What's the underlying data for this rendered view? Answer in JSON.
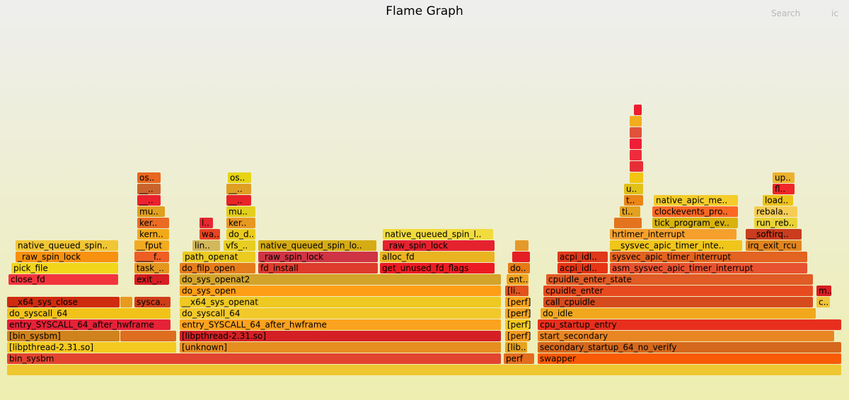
{
  "header": {
    "title": "Flame Graph",
    "search_label": "Search",
    "ic_label": "ic"
  },
  "chart_data": {
    "type": "flamegraph",
    "title": "Flame Graph",
    "total_samples": 1180,
    "frames": [
      {
        "name": "",
        "s": 0,
        "w": 1180,
        "d": 0,
        "c": "#eec731"
      },
      {
        "name": "bin_sysbm",
        "s": 0,
        "w": 699,
        "d": 1,
        "c": "#e24430"
      },
      {
        "name": "perf",
        "s": 702,
        "w": 44,
        "d": 1,
        "c": "#e36c1d"
      },
      {
        "name": "swapper",
        "s": 750,
        "w": 430,
        "d": 1,
        "c": "#f95a06"
      },
      {
        "name": "[libpthread-2.31.so]",
        "s": 0,
        "w": 240,
        "d": 2,
        "c": "#f4ca21"
      },
      {
        "name": "[unknown]",
        "s": 244,
        "w": 455,
        "d": 2,
        "c": "#e68e20"
      },
      {
        "name": "[lib..",
        "s": 704,
        "w": 32,
        "d": 2,
        "c": "#e7a21d"
      },
      {
        "name": "secondary_startup_64_no_verify",
        "s": 750,
        "w": 430,
        "d": 2,
        "c": "#d5681c"
      },
      {
        "name": "[bin_sysbm]",
        "s": 0,
        "w": 160,
        "d": 3,
        "c": "#d0821c"
      },
      {
        "name": "",
        "s": 160,
        "w": 80,
        "d": 3,
        "c": "#de6d20"
      },
      {
        "name": "[libpthread-2.31.so]",
        "s": 244,
        "w": 455,
        "d": 3,
        "c": "#d42024"
      },
      {
        "name": "[perf]",
        "s": 704,
        "w": 36,
        "d": 3,
        "c": "#f39a1d"
      },
      {
        "name": "start_secondary",
        "s": 750,
        "w": 420,
        "d": 3,
        "c": "#e98624"
      },
      {
        "name": "entry_SYSCALL_64_after_hwframe",
        "s": 0,
        "w": 232,
        "d": 4,
        "c": "#e62238"
      },
      {
        "name": "entry_SYSCALL_64_after_hwframe",
        "s": 244,
        "w": 455,
        "d": 4,
        "c": "#fba21e"
      },
      {
        "name": "[perf]",
        "s": 704,
        "w": 36,
        "d": 4,
        "c": "#f2c91f"
      },
      {
        "name": "cpu_startup_entry",
        "s": 750,
        "w": 430,
        "d": 4,
        "c": "#e82f1e"
      },
      {
        "name": "do_syscall_64",
        "s": 0,
        "w": 232,
        "d": 5,
        "c": "#f1c31a"
      },
      {
        "name": "do_syscall_64",
        "s": 244,
        "w": 455,
        "d": 5,
        "c": "#f2c92a"
      },
      {
        "name": "[perf]",
        "s": 704,
        "w": 36,
        "d": 5,
        "c": "#f1a31f"
      },
      {
        "name": "do_idle",
        "s": 754,
        "w": 390,
        "d": 5,
        "c": "#f1a81d"
      },
      {
        "name": "__x64_sys_close",
        "s": 0,
        "w": 160,
        "d": 6,
        "c": "#cf2b0e"
      },
      {
        "name": "",
        "s": 160,
        "w": 18,
        "d": 6,
        "c": "#e89a1f"
      },
      {
        "name": "sysca..",
        "s": 180,
        "w": 52,
        "d": 6,
        "c": "#cf3d18"
      },
      {
        "name": "__x64_sys_openat",
        "s": 244,
        "w": 455,
        "d": 6,
        "c": "#efc922"
      },
      {
        "name": "[perf]",
        "s": 704,
        "w": 36,
        "d": 6,
        "c": "#fba319"
      },
      {
        "name": "call_cpuidle",
        "s": 758,
        "w": 382,
        "d": 6,
        "c": "#d54b1d"
      },
      {
        "name": "c..",
        "s": 1144,
        "w": 20,
        "d": 6,
        "c": "#f1c53a"
      },
      {
        "name": "do_sys_open",
        "s": 244,
        "w": 455,
        "d": 7,
        "c": "#fe9e17"
      },
      {
        "name": "[li..",
        "s": 704,
        "w": 34,
        "d": 7,
        "c": "#e3521c"
      },
      {
        "name": "cpuidle_enter",
        "s": 758,
        "w": 382,
        "d": 7,
        "c": "#e84a1f"
      },
      {
        "name": "m..",
        "s": 1144,
        "w": 22,
        "d": 7,
        "c": "#d91d21"
      },
      {
        "name": "close_fd",
        "s": 2,
        "w": 156,
        "d": 8,
        "c": "#f2353d"
      },
      {
        "name": "exit_..",
        "s": 180,
        "w": 50,
        "d": 8,
        "c": "#d71e22"
      },
      {
        "name": "do_sys_openat2",
        "s": 244,
        "w": 455,
        "d": 8,
        "c": "#d3a32a"
      },
      {
        "name": "ent..",
        "s": 706,
        "w": 32,
        "d": 8,
        "c": "#efa41f"
      },
      {
        "name": "cpuidle_enter_state",
        "s": 762,
        "w": 378,
        "d": 8,
        "c": "#e05b25"
      },
      {
        "name": "pick_file",
        "s": 6,
        "w": 152,
        "d": 9,
        "c": "#f2d61b"
      },
      {
        "name": "task_..",
        "s": 180,
        "w": 50,
        "d": 9,
        "c": "#e4961f"
      },
      {
        "name": "do_filp_open",
        "s": 244,
        "w": 108,
        "d": 9,
        "c": "#e57c1c"
      },
      {
        "name": "fd_install",
        "s": 355,
        "w": 170,
        "d": 9,
        "c": "#de3b2d"
      },
      {
        "name": "get_unused_fd_flags",
        "s": 527,
        "w": 163,
        "d": 9,
        "c": "#ec1b23"
      },
      {
        "name": "do..",
        "s": 708,
        "w": 32,
        "d": 9,
        "c": "#e47a16"
      },
      {
        "name": "acpi_idl..",
        "s": 778,
        "w": 72,
        "d": 9,
        "c": "#e63414"
      },
      {
        "name": "asm_sysvec_apic_timer_interrupt",
        "s": 852,
        "w": 280,
        "d": 9,
        "c": "#e85230"
      },
      {
        "name": "_raw_spin_lock",
        "s": 12,
        "w": 146,
        "d": 10,
        "c": "#f7910f"
      },
      {
        "name": "____f..",
        "s": 180,
        "w": 50,
        "d": 10,
        "c": "#ee5e24"
      },
      {
        "name": "path_openat",
        "s": 248,
        "w": 104,
        "d": 10,
        "c": "#ebcb1f"
      },
      {
        "name": "_raw_spin_lock",
        "s": 355,
        "w": 170,
        "d": 10,
        "c": "#cf3444"
      },
      {
        "name": "alloc_fd",
        "s": 527,
        "w": 163,
        "d": 10,
        "c": "#e9b420"
      },
      {
        "name": "",
        "s": 714,
        "w": 26,
        "d": 10,
        "c": "#e51e25"
      },
      {
        "name": "acpi_idl..",
        "s": 778,
        "w": 72,
        "d": 10,
        "c": "#e0381b"
      },
      {
        "name": "sysvec_apic_timer_interrupt",
        "s": 852,
        "w": 280,
        "d": 10,
        "c": "#e36320"
      },
      {
        "name": "native_queued_spin..",
        "s": 12,
        "w": 146,
        "d": 11,
        "c": "#f1c635"
      },
      {
        "name": "__fput",
        "s": 180,
        "w": 50,
        "d": 11,
        "c": "#f2ab1f"
      },
      {
        "name": "lin..",
        "s": 262,
        "w": 40,
        "d": 11,
        "c": "#d3b75b"
      },
      {
        "name": "vfs_..",
        "s": 306,
        "w": 46,
        "d": 11,
        "c": "#e8ce22"
      },
      {
        "name": "native_queued_spin_lo..",
        "s": 355,
        "w": 168,
        "d": 11,
        "c": "#d6ac14"
      },
      {
        "name": "_raw_spin_lock",
        "s": 531,
        "w": 159,
        "d": 11,
        "c": "#e5232f"
      },
      {
        "name": "",
        "s": 718,
        "w": 20,
        "d": 11,
        "c": "#e5992a"
      },
      {
        "name": "__sysvec_apic_timer_inte..",
        "s": 852,
        "w": 188,
        "d": 11,
        "c": "#f1c61b"
      },
      {
        "name": "irq_exit_rcu",
        "s": 1044,
        "w": 80,
        "d": 11,
        "c": "#e3851e"
      },
      {
        "name": "kern..",
        "s": 184,
        "w": 46,
        "d": 12,
        "c": "#f2a919"
      },
      {
        "name": "wa..",
        "s": 272,
        "w": 30,
        "d": 12,
        "c": "#e74322"
      },
      {
        "name": "do_d..",
        "s": 310,
        "w": 42,
        "d": 12,
        "c": "#eacb1b"
      },
      {
        "name": "native_queued_spin_l..",
        "s": 531,
        "w": 157,
        "d": 12,
        "c": "#f1db3e"
      },
      {
        "name": "hrtimer_interrupt",
        "s": 852,
        "w": 180,
        "d": 12,
        "c": "#f5a02d"
      },
      {
        "name": "__softirq..",
        "s": 1044,
        "w": 80,
        "d": 12,
        "c": "#c93c1d"
      },
      {
        "name": "ker..",
        "s": 184,
        "w": 46,
        "d": 13,
        "c": "#ea6b21"
      },
      {
        "name": "l..",
        "s": 272,
        "w": 20,
        "d": 13,
        "c": "#e52832"
      },
      {
        "name": "ker..",
        "s": 310,
        "w": 42,
        "d": 13,
        "c": "#e79822"
      },
      {
        "name": "",
        "s": 858,
        "w": 40,
        "d": 13,
        "c": "#e3741d"
      },
      {
        "name": "tick_program_ev..",
        "s": 912,
        "w": 122,
        "d": 13,
        "c": "#d8b30f"
      },
      {
        "name": "run_reb..",
        "s": 1056,
        "w": 62,
        "d": 13,
        "c": "#e9d236"
      },
      {
        "name": "mu..",
        "s": 184,
        "w": 40,
        "d": 14,
        "c": "#e0a01f"
      },
      {
        "name": "mu..",
        "s": 310,
        "w": 42,
        "d": 14,
        "c": "#e3cf1b"
      },
      {
        "name": "ti..",
        "s": 866,
        "w": 30,
        "d": 14,
        "c": "#e2a11f"
      },
      {
        "name": "clockevents_pro..",
        "s": 912,
        "w": 122,
        "d": 14,
        "c": "#fc6824"
      },
      {
        "name": "rebala..",
        "s": 1056,
        "w": 62,
        "d": 14,
        "c": "#f5cd54"
      },
      {
        "name": "__..",
        "s": 184,
        "w": 34,
        "d": 15,
        "c": "#ec212e"
      },
      {
        "name": "__..",
        "s": 310,
        "w": 36,
        "d": 15,
        "c": "#e82428"
      },
      {
        "name": "t..",
        "s": 872,
        "w": 28,
        "d": 15,
        "c": "#ea8516"
      },
      {
        "name": "native_apic_me..",
        "s": 914,
        "w": 120,
        "d": 15,
        "c": "#f4cc2b"
      },
      {
        "name": "load..",
        "s": 1068,
        "w": 44,
        "d": 15,
        "c": "#ecc31a"
      },
      {
        "name": "__..",
        "s": 184,
        "w": 34,
        "d": 16,
        "c": "#c9632c"
      },
      {
        "name": "__..",
        "s": 310,
        "w": 36,
        "d": 16,
        "c": "#de9f22"
      },
      {
        "name": "u..",
        "s": 872,
        "w": 28,
        "d": 16,
        "c": "#e2c016"
      },
      {
        "name": "fl..",
        "s": 1082,
        "w": 32,
        "d": 16,
        "c": "#f02628"
      },
      {
        "name": "os..",
        "s": 184,
        "w": 34,
        "d": 17,
        "c": "#e8671f"
      },
      {
        "name": "os..",
        "s": 312,
        "w": 34,
        "d": 17,
        "c": "#e7d414"
      },
      {
        "name": "",
        "s": 880,
        "w": 20,
        "d": 17,
        "c": "#f1c512"
      },
      {
        "name": "up..",
        "s": 1082,
        "w": 32,
        "d": 17,
        "c": "#ecb22d"
      },
      {
        "name": "",
        "s": 880,
        "w": 20,
        "d": 18,
        "c": "#e72e36"
      },
      {
        "name": "",
        "s": 880,
        "w": 18,
        "d": 19,
        "c": "#ee2c3c"
      },
      {
        "name": "",
        "s": 880,
        "w": 18,
        "d": 20,
        "c": "#f01e36"
      },
      {
        "name": "",
        "s": 880,
        "w": 18,
        "d": 21,
        "c": "#e0533a"
      },
      {
        "name": "",
        "s": 880,
        "w": 18,
        "d": 22,
        "c": "#f2ad1f"
      },
      {
        "name": "",
        "s": 886,
        "w": 12,
        "d": 23,
        "c": "#ec1d2e"
      }
    ]
  }
}
